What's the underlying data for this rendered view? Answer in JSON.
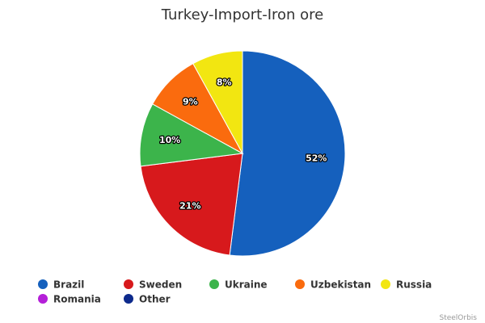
{
  "chart_data": {
    "type": "pie",
    "title": "Turkey-Import-Iron ore",
    "categories": [
      "Brazil",
      "Sweden",
      "Ukraine",
      "Uzbekistan",
      "Russia",
      "Romania",
      "Other"
    ],
    "values": [
      52,
      21,
      10,
      9,
      8,
      0,
      0
    ],
    "value_labels": [
      "52%",
      "21%",
      "10%",
      "9%",
      "8%",
      null,
      null
    ],
    "colors": [
      "#1560bd",
      "#d7191c",
      "#3cb44b",
      "#fa6b0e",
      "#f2e611",
      "#b41fd8",
      "#0d2a8c"
    ],
    "legend": "bottom",
    "credit": "SteelOrbis"
  }
}
